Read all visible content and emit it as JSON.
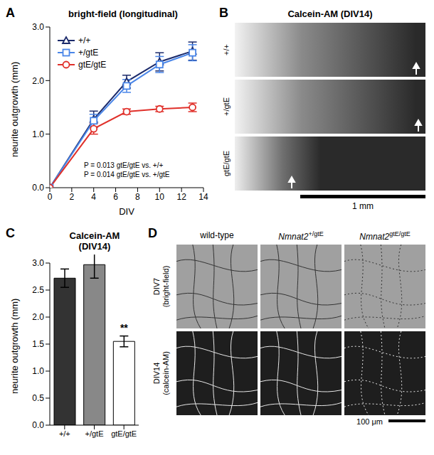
{
  "chart_data": [
    {
      "panel": "A",
      "type": "line",
      "title": "bright-field (longitudinal)",
      "x_label": "DIV",
      "y_label": "neurite outgrowth (mm)",
      "x": [
        0,
        4,
        7,
        10,
        13
      ],
      "xlim": [
        0,
        14
      ],
      "xticks": [
        0,
        2,
        4,
        6,
        8,
        10,
        12,
        14
      ],
      "ylim": [
        0,
        3
      ],
      "yticks": [
        {
          "value": 0,
          "label": "0.0"
        },
        {
          "value": 1,
          "label": "1.0"
        },
        {
          "value": 2,
          "label": "2.0"
        },
        {
          "value": 3,
          "label": "3.0"
        }
      ],
      "legend": "upper left",
      "series": [
        {
          "name": "+/+",
          "color": "#1b2a6b",
          "marker": "triangle",
          "values": [
            0,
            1.28,
            1.98,
            2.35,
            2.55
          ],
          "errors": [
            0,
            0.15,
            0.12,
            0.17,
            0.17
          ]
        },
        {
          "name": "+/gtE",
          "color": "#4a86e8",
          "marker": "square",
          "values": [
            0,
            1.25,
            1.9,
            2.3,
            2.52
          ],
          "errors": [
            0,
            0.12,
            0.12,
            0.15,
            0.15
          ]
        },
        {
          "name": "gtE/gtE",
          "color": "#e0302a",
          "marker": "circle",
          "values": [
            0,
            1.1,
            1.42,
            1.47,
            1.5
          ],
          "errors": [
            0,
            0.1,
            0.05,
            0.05,
            0.08
          ]
        }
      ],
      "annotations": [
        "P = 0.013 gtE/gtE vs. +/+",
        "P = 0.014 gtE/gtE vs. +/gtE"
      ]
    },
    {
      "panel": "C",
      "type": "bar",
      "title": "Calcein-AM",
      "subtitle": "(DIV14)",
      "y_label": "neurite outgrowth (mm)",
      "categories": [
        "+/+",
        "+/gtE",
        "gtE/gtE"
      ],
      "values": [
        2.72,
        2.97,
        1.55
      ],
      "errors": [
        0.17,
        0.25,
        0.1
      ],
      "colors": [
        "#333333",
        "#888888",
        "#ffffff"
      ],
      "ylim": [
        0,
        3
      ],
      "yticks": [
        {
          "value": 0,
          "label": "0.0"
        },
        0.5,
        {
          "value": 1,
          "label": "1.0"
        },
        1.5,
        {
          "value": 2,
          "label": "2.0"
        },
        2.5,
        {
          "value": 3,
          "label": "3.0"
        }
      ],
      "annotations": [
        {
          "category": "gtE/gtE",
          "text": "**"
        }
      ]
    }
  ],
  "panels": {
    "B": {
      "panel": "B",
      "title": "Calcein-AM (DIV14)",
      "rows": [
        "+/+",
        "+/gtE",
        "gtE/gtE"
      ],
      "scale_bar": "1 mm"
    },
    "D": {
      "panel": "D",
      "columns": [
        {
          "text": "wild-type"
        },
        {
          "gene": "Nmnat2",
          "genotype": "+/gtE"
        },
        {
          "gene": "Nmnat2",
          "genotype": "gtE/gtE"
        }
      ],
      "rows": [
        [
          "DIV7",
          "(bright-field)"
        ],
        [
          "DIV14",
          "(calcein-AM)"
        ]
      ],
      "scale_bar": "100 μm"
    }
  }
}
